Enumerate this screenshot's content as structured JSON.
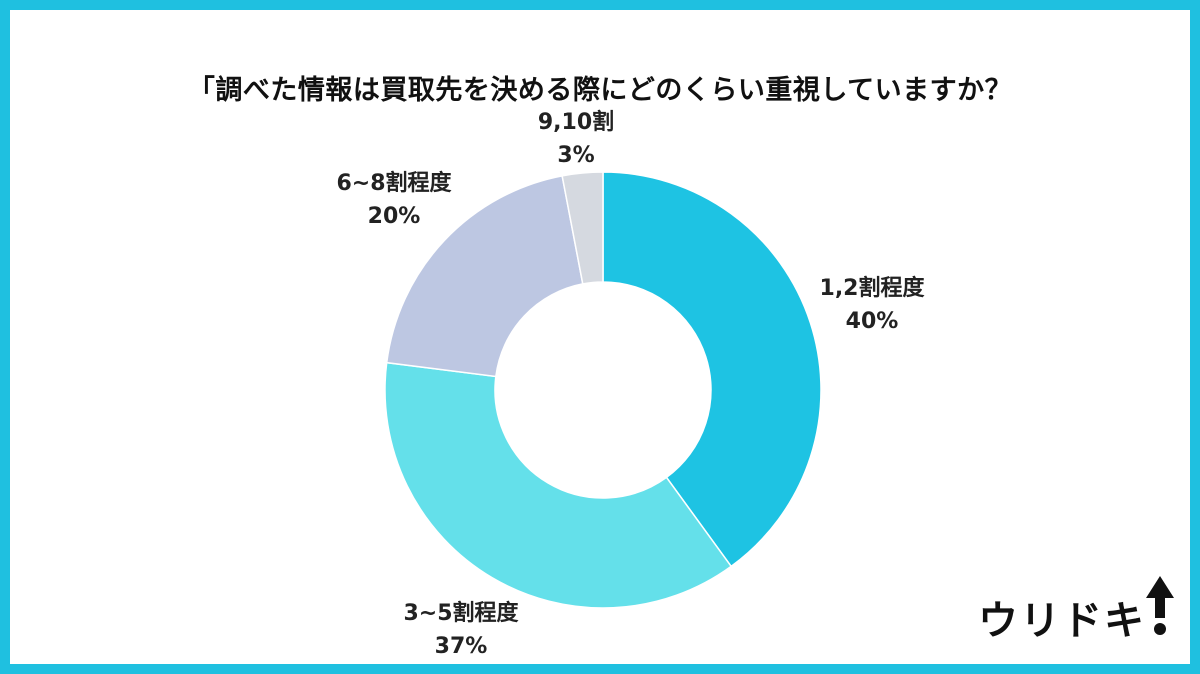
{
  "title": "「調べた情報は買取先を決める際にどのくらい重視していますか？",
  "chart_data": {
    "type": "pie",
    "style": "donut",
    "categories": [
      "1,2割程度",
      "3~5割程度",
      "6~8割程度",
      "9,10割"
    ],
    "values": [
      40,
      37,
      20,
      3
    ],
    "value_labels": [
      "40%",
      "37%",
      "20%",
      "3%"
    ],
    "colors": [
      "#1ec3e3",
      "#64e0ea",
      "#bdc7e2",
      "#d5d9e0"
    ],
    "start": "12 o'clock",
    "direction": "clockwise"
  },
  "logo": {
    "text": "ウリドキ"
  },
  "colors": {
    "frame": "#1fc0e0",
    "background": "#ffffff"
  }
}
